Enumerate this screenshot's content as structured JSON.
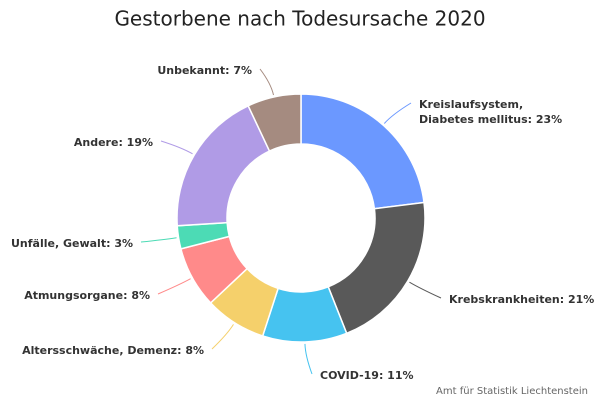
{
  "chart_data": {
    "type": "donut",
    "title": "Gestorbene nach Todesursache 2020",
    "values": [
      23,
      21,
      11,
      8,
      8,
      3,
      19,
      7
    ],
    "value_labels": [
      "Kreislaufsystem, Diabetes mellitus: 23%",
      "Krebskrankheiten: 21%",
      "COVID-19: 11%",
      "Altersschwäche, Demenz: 8%",
      "Atmungsorgane: 8%",
      "Unfälle, Gewalt: 3%",
      "Andere: 19%",
      "Unbekannt: 7%"
    ],
    "colors": [
      "#6b98ff",
      "#595959",
      "#46c3f0",
      "#f5d06b",
      "#ff8a8a",
      "#4cdbb5",
      "#b09be6",
      "#a58b80"
    ],
    "source": "Amt für Statistik Liechtenstein"
  }
}
